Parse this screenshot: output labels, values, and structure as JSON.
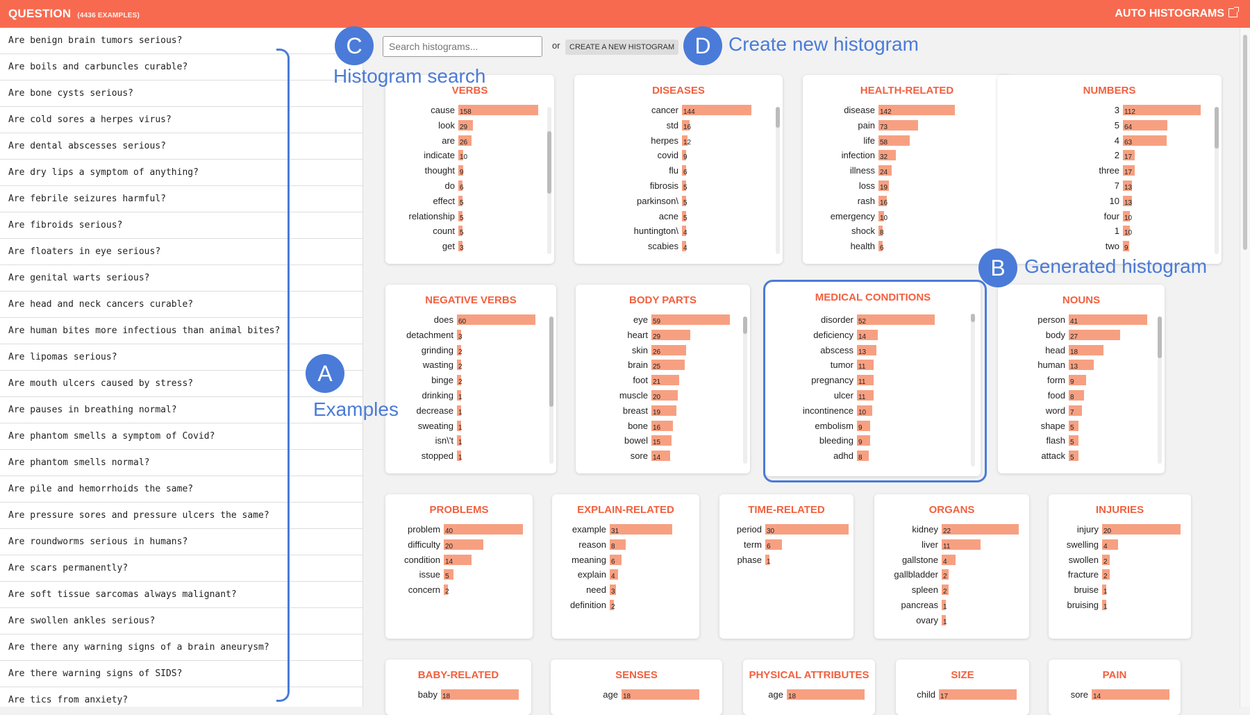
{
  "header": {
    "title": "QUESTION",
    "count": "(4436 EXAMPLES)",
    "auto_label": "AUTO HISTOGRAMS"
  },
  "search": {
    "placeholder": "Search histograms...",
    "or_text": "or",
    "new_button": "CREATE A NEW HISTOGRAM"
  },
  "examples": [
    "Are benign brain tumors serious?",
    "Are boils and carbuncles curable?",
    "Are bone cysts serious?",
    "Are cold sores a herpes virus?",
    "Are dental abscesses serious?",
    "Are dry lips a symptom of anything?",
    "Are febrile seizures harmful?",
    "Are fibroids serious?",
    "Are floaters in eye serious?",
    "Are genital warts serious?",
    "Are head and neck cancers curable?",
    "Are human bites more infectious than animal bites?",
    "Are lipomas serious?",
    "Are mouth ulcers caused by stress?",
    "Are pauses in breathing normal?",
    "Are phantom smells a symptom of Covid?",
    "Are phantom smells normal?",
    "Are pile and hemorrhoids the same?",
    "Are pressure sores and pressure ulcers the same?",
    "Are roundworms serious in humans?",
    "Are scars permanently?",
    "Are soft tissue sarcomas always malignant?",
    "Are swollen ankles serious?",
    "Are there any warning signs of a brain aneurysm?",
    "Are there warning signs of SIDS?",
    "Are tics from anxiety?"
  ],
  "annotations": {
    "A": {
      "letter": "A",
      "label": "Examples"
    },
    "B": {
      "letter": "B",
      "label": "Generated histogram"
    },
    "C": {
      "letter": "C",
      "label": "Histogram search"
    },
    "D": {
      "letter": "D",
      "label": "Create new histogram"
    }
  },
  "histograms": [
    {
      "title": "VERBS",
      "items": [
        [
          "cause",
          158
        ],
        [
          "look",
          29
        ],
        [
          "are",
          26
        ],
        [
          "indicate",
          10
        ],
        [
          "thought",
          9
        ],
        [
          "do",
          6
        ],
        [
          "effect",
          5
        ],
        [
          "relationship",
          5
        ],
        [
          "count",
          5
        ],
        [
          "get",
          3
        ]
      ]
    },
    {
      "title": "DISEASES",
      "items": [
        [
          "cancer",
          144
        ],
        [
          "std",
          16
        ],
        [
          "herpes",
          12
        ],
        [
          "covid",
          9
        ],
        [
          "flu",
          6
        ],
        [
          "fibrosis",
          5
        ],
        [
          "parkinson\\",
          5
        ],
        [
          "acne",
          5
        ],
        [
          "huntington\\",
          4
        ],
        [
          "scabies",
          4
        ]
      ]
    },
    {
      "title": "HEALTH-RELATED",
      "items": [
        [
          "disease",
          142
        ],
        [
          "pain",
          73
        ],
        [
          "life",
          58
        ],
        [
          "infection",
          32
        ],
        [
          "illness",
          24
        ],
        [
          "loss",
          19
        ],
        [
          "rash",
          16
        ],
        [
          "emergency",
          10
        ],
        [
          "shock",
          8
        ],
        [
          "health",
          6
        ]
      ]
    },
    {
      "title": "NUMBERS",
      "items": [
        [
          "3",
          112
        ],
        [
          "5",
          64
        ],
        [
          "4",
          63
        ],
        [
          "2",
          17
        ],
        [
          "three",
          17
        ],
        [
          "7",
          13
        ],
        [
          "10",
          13
        ],
        [
          "four",
          10
        ],
        [
          "1",
          10
        ],
        [
          "two",
          9
        ]
      ]
    },
    {
      "title": "NEGATIVE VERBS",
      "items": [
        [
          "does",
          60
        ],
        [
          "detachment",
          3
        ],
        [
          "grinding",
          2
        ],
        [
          "wasting",
          2
        ],
        [
          "binge",
          2
        ],
        [
          "drinking",
          1
        ],
        [
          "decrease",
          1
        ],
        [
          "sweating",
          1
        ],
        [
          "isn\\'t",
          1
        ],
        [
          "stopped",
          1
        ]
      ]
    },
    {
      "title": "BODY PARTS",
      "items": [
        [
          "eye",
          59
        ],
        [
          "heart",
          29
        ],
        [
          "skin",
          26
        ],
        [
          "brain",
          25
        ],
        [
          "foot",
          21
        ],
        [
          "muscle",
          20
        ],
        [
          "breast",
          19
        ],
        [
          "bone",
          16
        ],
        [
          "bowel",
          15
        ],
        [
          "sore",
          14
        ]
      ]
    },
    {
      "title": "MEDICAL CONDITIONS",
      "items": [
        [
          "disorder",
          52
        ],
        [
          "deficiency",
          14
        ],
        [
          "abscess",
          13
        ],
        [
          "tumor",
          11
        ],
        [
          "pregnancy",
          11
        ],
        [
          "ulcer",
          11
        ],
        [
          "incontinence",
          10
        ],
        [
          "embolism",
          9
        ],
        [
          "bleeding",
          9
        ],
        [
          "adhd",
          8
        ]
      ]
    },
    {
      "title": "NOUNS",
      "items": [
        [
          "person",
          41
        ],
        [
          "body",
          27
        ],
        [
          "head",
          18
        ],
        [
          "human",
          13
        ],
        [
          "form",
          9
        ],
        [
          "food",
          8
        ],
        [
          "word",
          7
        ],
        [
          "shape",
          5
        ],
        [
          "flash",
          5
        ],
        [
          "attack",
          5
        ]
      ]
    },
    {
      "title": "PROBLEMS",
      "items": [
        [
          "problem",
          40
        ],
        [
          "difficulty",
          20
        ],
        [
          "condition",
          14
        ],
        [
          "issue",
          5
        ],
        [
          "concern",
          2
        ]
      ]
    },
    {
      "title": "EXPLAIN-RELATED",
      "items": [
        [
          "example",
          31
        ],
        [
          "reason",
          8
        ],
        [
          "meaning",
          6
        ],
        [
          "explain",
          4
        ],
        [
          "need",
          3
        ],
        [
          "definition",
          2
        ]
      ]
    },
    {
      "title": "TIME-RELATED",
      "items": [
        [
          "period",
          30
        ],
        [
          "term",
          6
        ],
        [
          "phase",
          1
        ]
      ]
    },
    {
      "title": "ORGANS",
      "items": [
        [
          "kidney",
          22
        ],
        [
          "liver",
          11
        ],
        [
          "gallstone",
          4
        ],
        [
          "gallbladder",
          2
        ],
        [
          "spleen",
          2
        ],
        [
          "pancreas",
          1
        ],
        [
          "ovary",
          1
        ]
      ]
    },
    {
      "title": "INJURIES",
      "items": [
        [
          "injury",
          20
        ],
        [
          "swelling",
          4
        ],
        [
          "swollen",
          2
        ],
        [
          "fracture",
          2
        ],
        [
          "bruise",
          1
        ],
        [
          "bruising",
          1
        ]
      ]
    },
    {
      "title": "BABY-RELATED",
      "items": [
        [
          "baby",
          18
        ]
      ]
    },
    {
      "title": "SENSES",
      "items": [
        [
          "age",
          18
        ]
      ]
    },
    {
      "title": "PHYSICAL ATTRIBUTES",
      "items": [
        [
          "age",
          18
        ]
      ]
    },
    {
      "title": "SIZE",
      "items": [
        [
          "child",
          17
        ]
      ]
    },
    {
      "title": "PAIN",
      "items": [
        [
          "sore",
          14
        ]
      ]
    }
  ]
}
